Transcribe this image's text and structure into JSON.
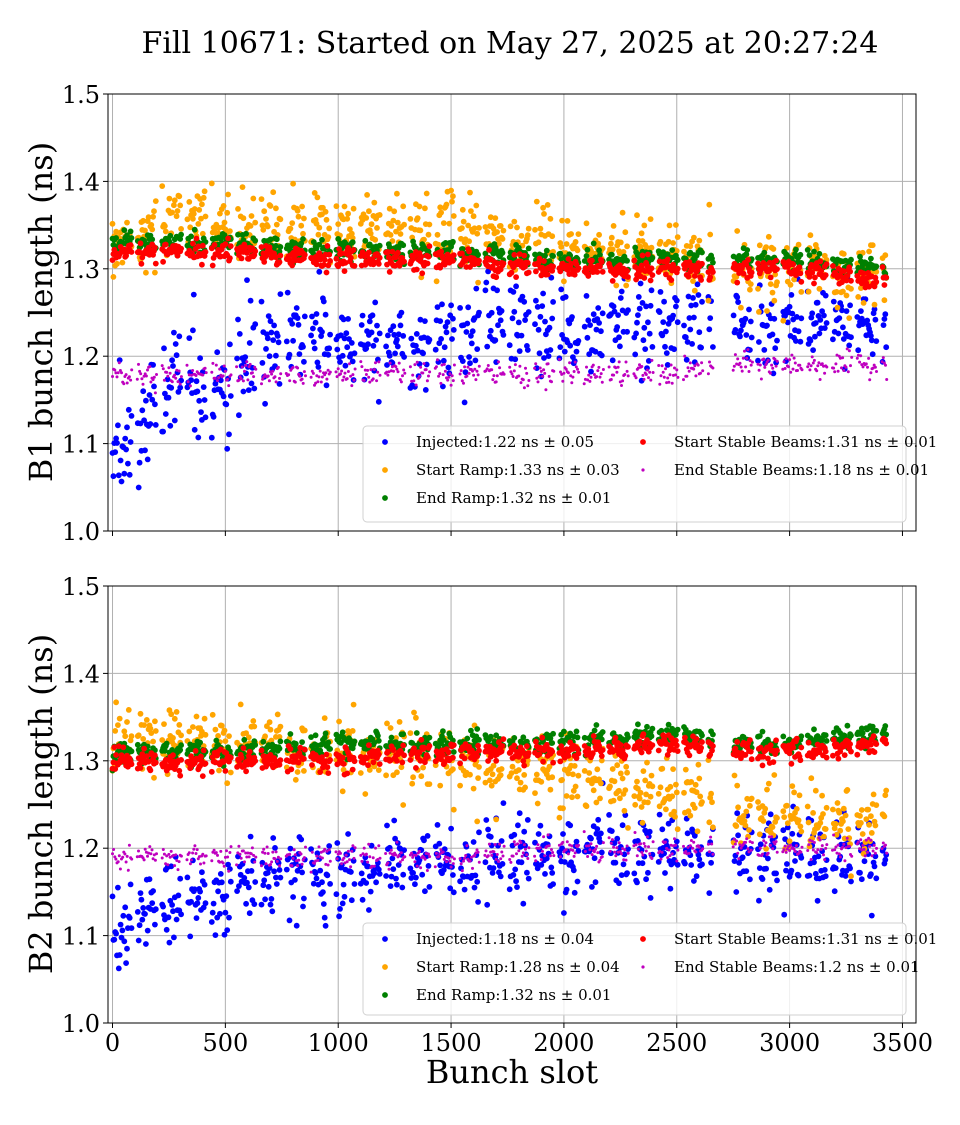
{
  "figure": {
    "title": "Fill 10671: Started on May 27, 2025 at 20:27:24",
    "shared_xlabel": "Bunch slot"
  },
  "colors": {
    "injected": "#0000ff",
    "start_ramp": "#ffa500",
    "end_ramp": "#008000",
    "start_stable": "#ff0000",
    "end_stable": "#bf00bf",
    "grid": "#b0b0b0"
  },
  "chart_data": [
    {
      "type": "scatter",
      "ylabel": "B1 bunch length (ns)",
      "xlabel": "Bunch slot",
      "xlim": [
        -20,
        3560
      ],
      "ylim": [
        1.0,
        1.5
      ],
      "x_ticks": [
        0,
        500,
        1000,
        1500,
        2000,
        2500,
        3000,
        3500
      ],
      "y_ticks": [
        "1.0",
        "1.1",
        "1.2",
        "1.3",
        "1.4",
        "1.5"
      ],
      "x_tick_labels_visible": false,
      "grid": true,
      "legend_position": "lower right",
      "legend": [
        {
          "label": "Injected:1.22 ns ± 0.05",
          "color_key": "injected",
          "column": 0
        },
        {
          "label": "Start Ramp:1.33 ns ± 0.03",
          "color_key": "start_ramp",
          "column": 0
        },
        {
          "label": "End Ramp:1.32 ns ± 0.01",
          "color_key": "end_ramp",
          "column": 0
        },
        {
          "label": "Start Stable Beams:1.31 ns ± 0.01",
          "color_key": "start_stable",
          "column": 1
        },
        {
          "label": "End Stable Beams:1.18 ns ± 0.01",
          "color_key": "end_stable",
          "column": 1
        }
      ],
      "series": [
        {
          "name": "Injected",
          "color_key": "injected",
          "size": "large",
          "x": [
            0,
            30,
            60,
            90,
            120,
            150,
            200,
            250,
            300,
            350,
            400,
            450,
            500,
            550,
            600,
            700,
            800,
            900,
            1000,
            1100,
            1200,
            1300,
            1400,
            1500,
            1600,
            1700,
            1800,
            1900,
            2000,
            2100,
            2200,
            2300,
            2400,
            2500,
            2600,
            2750,
            2850,
            2950,
            3050,
            3150,
            3250,
            3350,
            3420
          ],
          "y": [
            1.07,
            1.09,
            1.1,
            1.11,
            1.12,
            1.13,
            1.15,
            1.17,
            1.17,
            1.18,
            1.16,
            1.15,
            1.15,
            1.17,
            1.2,
            1.21,
            1.21,
            1.22,
            1.22,
            1.22,
            1.22,
            1.21,
            1.21,
            1.22,
            1.23,
            1.24,
            1.24,
            1.23,
            1.23,
            1.22,
            1.23,
            1.24,
            1.24,
            1.24,
            1.24,
            1.23,
            1.24,
            1.23,
            1.24,
            1.24,
            1.24,
            1.24,
            1.24
          ],
          "spread": [
            0.04,
            0.04,
            0.04,
            0.04,
            0.04,
            0.04,
            0.04,
            0.04,
            0.04,
            0.04,
            0.04,
            0.04,
            0.04,
            0.04,
            0.04,
            0.035,
            0.035,
            0.035,
            0.035,
            0.035,
            0.035,
            0.035,
            0.035,
            0.035,
            0.035,
            0.035,
            0.035,
            0.035,
            0.035,
            0.035,
            0.035,
            0.035,
            0.035,
            0.035,
            0.035,
            0.03,
            0.03,
            0.03,
            0.03,
            0.03,
            0.03,
            0.03,
            0.03
          ]
        },
        {
          "name": "Start Ramp",
          "color_key": "start_ramp",
          "size": "large",
          "x": [
            0,
            100,
            200,
            300,
            400,
            500,
            600,
            700,
            800,
            900,
            1000,
            1100,
            1200,
            1300,
            1400,
            1500,
            1600,
            1700,
            1800,
            1900,
            2000,
            2100,
            2200,
            2300,
            2400,
            2500,
            2600,
            2750,
            2850,
            2950,
            3050,
            3150,
            3250,
            3350,
            3420
          ],
          "y": [
            1.33,
            1.33,
            1.35,
            1.36,
            1.36,
            1.35,
            1.35,
            1.35,
            1.35,
            1.35,
            1.35,
            1.35,
            1.35,
            1.34,
            1.34,
            1.34,
            1.34,
            1.34,
            1.33,
            1.33,
            1.32,
            1.32,
            1.32,
            1.32,
            1.32,
            1.32,
            1.31,
            1.3,
            1.3,
            1.3,
            1.3,
            1.3,
            1.29,
            1.29,
            1.29
          ],
          "spread": [
            0.025,
            0.025,
            0.025,
            0.025,
            0.025,
            0.025,
            0.025,
            0.025,
            0.025,
            0.025,
            0.025,
            0.025,
            0.025,
            0.025,
            0.025,
            0.025,
            0.025,
            0.025,
            0.025,
            0.025,
            0.025,
            0.025,
            0.025,
            0.025,
            0.025,
            0.025,
            0.025,
            0.025,
            0.025,
            0.025,
            0.025,
            0.025,
            0.025,
            0.025,
            0.025
          ]
        },
        {
          "name": "End Ramp",
          "color_key": "end_ramp",
          "size": "large",
          "x": [
            0,
            500,
            1000,
            1500,
            2000,
            2500,
            2700,
            3000,
            3420
          ],
          "y": [
            1.33,
            1.33,
            1.32,
            1.32,
            1.31,
            1.31,
            1.31,
            1.31,
            1.3
          ],
          "spread": [
            0.008,
            0.008,
            0.008,
            0.008,
            0.008,
            0.008,
            0.008,
            0.008,
            0.008
          ]
        },
        {
          "name": "Start Stable Beams",
          "color_key": "start_stable",
          "size": "large",
          "x": [
            0,
            500,
            1000,
            1500,
            2000,
            2500,
            2700,
            3000,
            3420
          ],
          "y": [
            1.32,
            1.32,
            1.31,
            1.31,
            1.3,
            1.3,
            1.3,
            1.3,
            1.29
          ],
          "spread": [
            0.008,
            0.008,
            0.008,
            0.008,
            0.008,
            0.008,
            0.008,
            0.008,
            0.008
          ]
        },
        {
          "name": "End Stable Beams",
          "color_key": "end_stable",
          "size": "small",
          "x": [
            0,
            500,
            1000,
            1500,
            2000,
            2500,
            2700,
            3000,
            3420
          ],
          "y": [
            1.18,
            1.18,
            1.18,
            1.18,
            1.18,
            1.18,
            1.19,
            1.19,
            1.19
          ],
          "spread": [
            0.009,
            0.009,
            0.009,
            0.009,
            0.009,
            0.009,
            0.009,
            0.009,
            0.009
          ]
        }
      ]
    },
    {
      "type": "scatter",
      "ylabel": "B2 bunch length (ns)",
      "xlabel": "Bunch slot",
      "xlim": [
        -20,
        3560
      ],
      "ylim": [
        1.0,
        1.5
      ],
      "x_ticks": [
        0,
        500,
        1000,
        1500,
        2000,
        2500,
        3000,
        3500
      ],
      "x_tick_labels": [
        "0",
        "500",
        "1000",
        "1500",
        "2000",
        "2500",
        "3000",
        "3500"
      ],
      "y_ticks": [
        "1.0",
        "1.1",
        "1.2",
        "1.3",
        "1.4",
        "1.5"
      ],
      "x_tick_labels_visible": true,
      "grid": true,
      "legend_position": "lower right",
      "legend": [
        {
          "label": "Injected:1.18 ns ± 0.04",
          "color_key": "injected",
          "column": 0
        },
        {
          "label": "Start Ramp:1.28 ns ± 0.04",
          "color_key": "start_ramp",
          "column": 0
        },
        {
          "label": "End Ramp:1.32 ns ± 0.01",
          "color_key": "end_ramp",
          "column": 0
        },
        {
          "label": "Start Stable Beams:1.31 ns ± 0.01",
          "color_key": "start_stable",
          "column": 1
        },
        {
          "label": "End Stable Beams:1.2 ns ± 0.01",
          "color_key": "end_stable",
          "column": 1
        }
      ],
      "series": [
        {
          "name": "Injected",
          "color_key": "injected",
          "size": "large",
          "x": [
            0,
            50,
            100,
            150,
            200,
            300,
            400,
            500,
            600,
            700,
            800,
            900,
            1000,
            1100,
            1200,
            1300,
            1400,
            1500,
            1600,
            1700,
            1800,
            1900,
            2000,
            2100,
            2200,
            2300,
            2400,
            2500,
            2600,
            2750,
            2850,
            2950,
            3050,
            3150,
            3250,
            3350,
            3420
          ],
          "y": [
            1.1,
            1.11,
            1.12,
            1.13,
            1.13,
            1.14,
            1.15,
            1.16,
            1.16,
            1.17,
            1.17,
            1.17,
            1.17,
            1.17,
            1.18,
            1.18,
            1.18,
            1.18,
            1.18,
            1.19,
            1.19,
            1.19,
            1.19,
            1.2,
            1.2,
            1.2,
            1.2,
            1.2,
            1.2,
            1.19,
            1.19,
            1.19,
            1.19,
            1.19,
            1.19,
            1.19,
            1.19
          ],
          "spread": [
            0.03,
            0.03,
            0.03,
            0.03,
            0.03,
            0.03,
            0.03,
            0.03,
            0.03,
            0.03,
            0.03,
            0.03,
            0.03,
            0.03,
            0.03,
            0.03,
            0.03,
            0.03,
            0.03,
            0.03,
            0.03,
            0.03,
            0.03,
            0.03,
            0.03,
            0.03,
            0.03,
            0.03,
            0.03,
            0.03,
            0.03,
            0.03,
            0.03,
            0.03,
            0.03,
            0.03,
            0.03
          ]
        },
        {
          "name": "Start Ramp",
          "color_key": "start_ramp",
          "size": "large",
          "x": [
            0,
            100,
            200,
            300,
            400,
            500,
            600,
            700,
            800,
            900,
            1000,
            1100,
            1200,
            1300,
            1400,
            1500,
            1600,
            1700,
            1800,
            1900,
            2000,
            2100,
            2200,
            2300,
            2400,
            2500,
            2600,
            2750,
            2850,
            2950,
            3050,
            3150,
            3250,
            3350,
            3420
          ],
          "y": [
            1.32,
            1.32,
            1.32,
            1.32,
            1.32,
            1.32,
            1.32,
            1.32,
            1.32,
            1.31,
            1.31,
            1.31,
            1.31,
            1.31,
            1.3,
            1.3,
            1.3,
            1.29,
            1.29,
            1.29,
            1.28,
            1.28,
            1.27,
            1.27,
            1.27,
            1.26,
            1.26,
            1.24,
            1.24,
            1.23,
            1.23,
            1.23,
            1.23,
            1.23,
            1.23
          ],
          "spread": [
            0.025,
            0.025,
            0.025,
            0.025,
            0.025,
            0.025,
            0.025,
            0.025,
            0.025,
            0.025,
            0.025,
            0.025,
            0.025,
            0.025,
            0.025,
            0.025,
            0.025,
            0.025,
            0.025,
            0.025,
            0.025,
            0.025,
            0.025,
            0.025,
            0.025,
            0.025,
            0.025,
            0.025,
            0.025,
            0.025,
            0.025,
            0.025,
            0.025,
            0.025,
            0.025
          ]
        },
        {
          "name": "End Ramp",
          "color_key": "end_ramp",
          "size": "large",
          "x": [
            0,
            500,
            1000,
            1500,
            2000,
            2500,
            2700,
            3000,
            3420
          ],
          "y": [
            1.31,
            1.31,
            1.32,
            1.32,
            1.32,
            1.33,
            1.32,
            1.32,
            1.33
          ],
          "spread": [
            0.008,
            0.008,
            0.008,
            0.008,
            0.008,
            0.008,
            0.008,
            0.008,
            0.008
          ]
        },
        {
          "name": "Start Stable Beams",
          "color_key": "start_stable",
          "size": "large",
          "x": [
            0,
            500,
            1000,
            1500,
            2000,
            2500,
            2700,
            3000,
            3420
          ],
          "y": [
            1.3,
            1.3,
            1.3,
            1.31,
            1.31,
            1.32,
            1.31,
            1.31,
            1.32
          ],
          "spread": [
            0.008,
            0.008,
            0.008,
            0.008,
            0.008,
            0.008,
            0.008,
            0.008,
            0.008
          ]
        },
        {
          "name": "End Stable Beams",
          "color_key": "end_stable",
          "size": "small",
          "x": [
            0,
            500,
            1000,
            1500,
            2000,
            2500,
            2700,
            3000,
            3420
          ],
          "y": [
            1.19,
            1.19,
            1.19,
            1.19,
            1.2,
            1.2,
            1.2,
            1.2,
            1.2
          ],
          "spread": [
            0.009,
            0.009,
            0.009,
            0.009,
            0.009,
            0.009,
            0.009,
            0.009,
            0.009
          ]
        }
      ]
    }
  ]
}
